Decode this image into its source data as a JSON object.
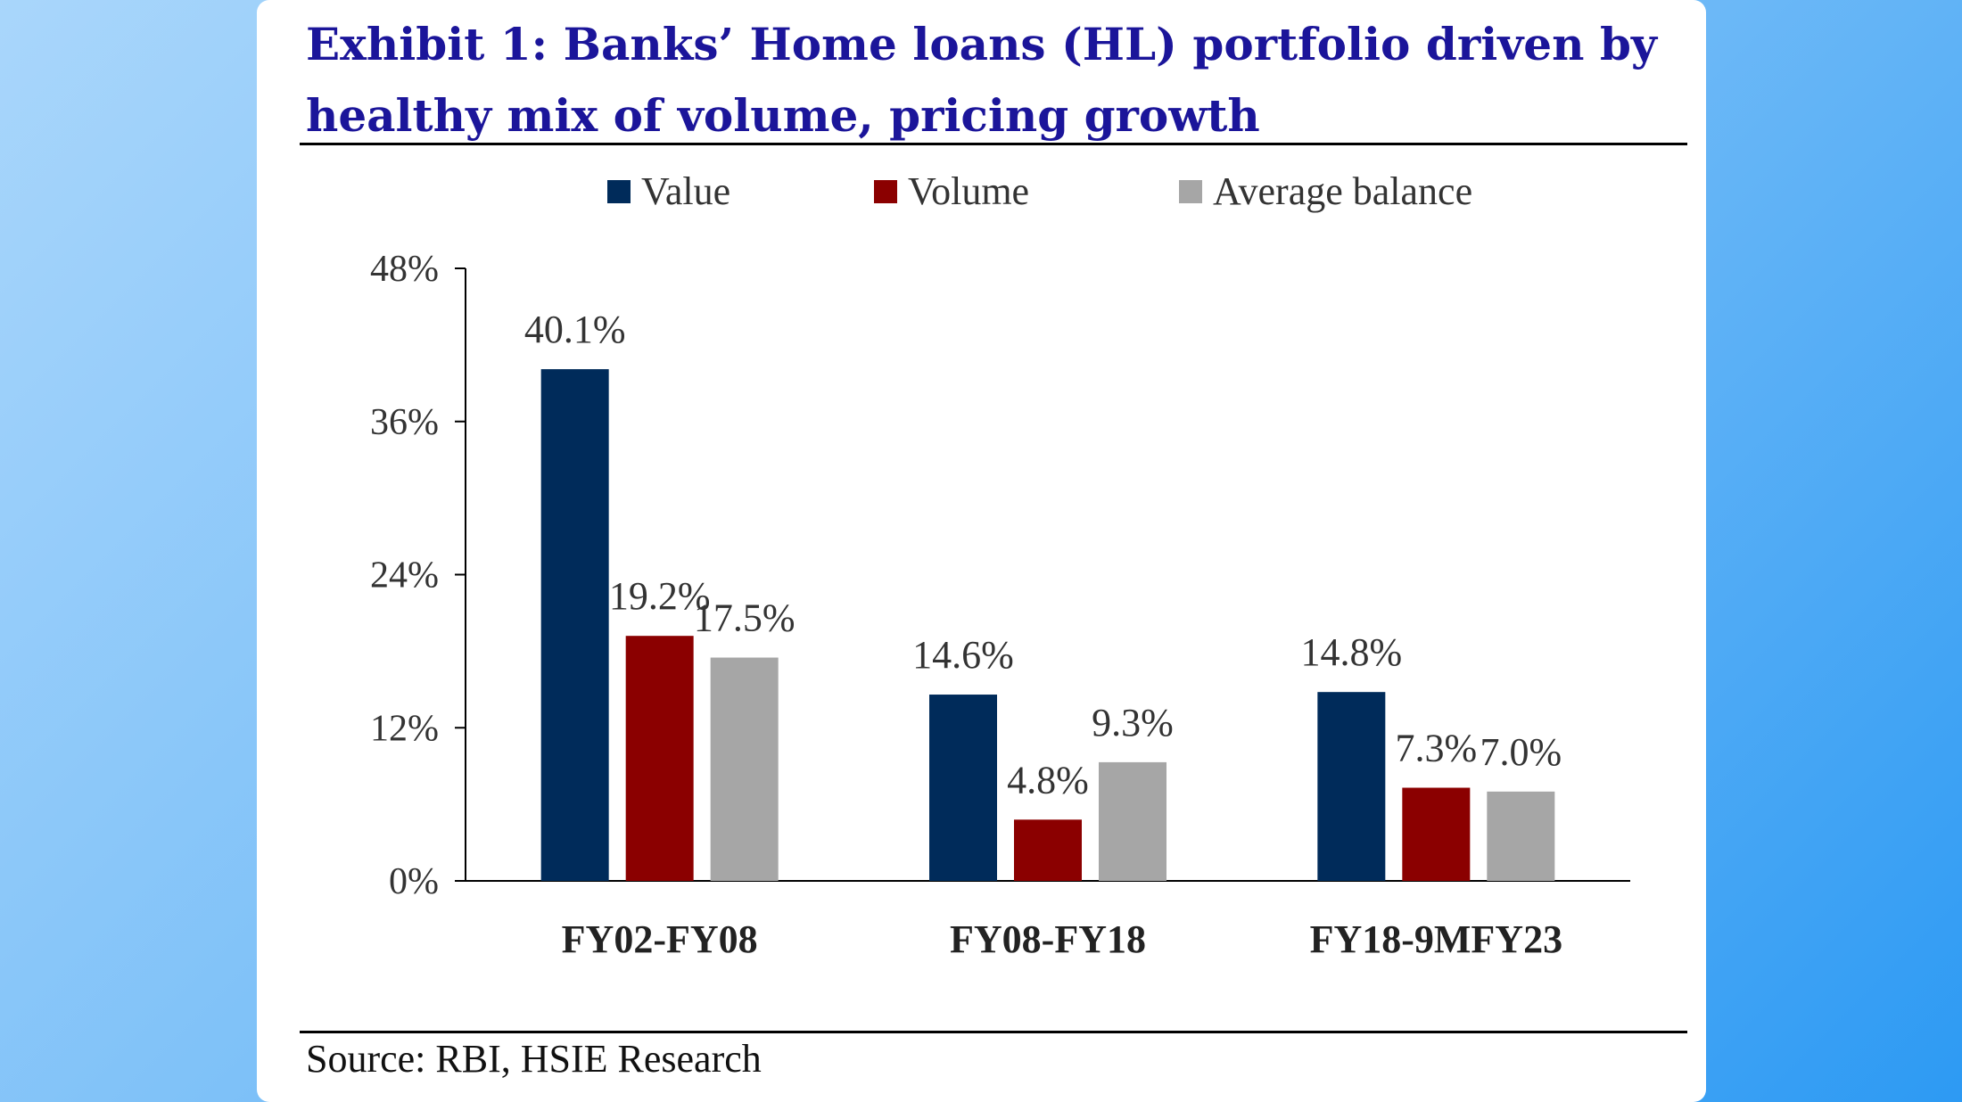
{
  "exhibit": {
    "title": "Exhibit 1: Banks’ Home loans (HL) portfolio driven by healthy mix of volume, pricing growth",
    "source": "Source: RBI, HSIE Research"
  },
  "colors": {
    "title": "#1b159a",
    "value": "#002b5a",
    "volume": "#8b0000",
    "average_balance": "#a6a6a6"
  },
  "chart_data": {
    "type": "bar",
    "title": "Exhibit 1: Banks’ Home loans (HL) portfolio driven by healthy mix of volume, pricing growth",
    "categories": [
      "FY02-FY08",
      "FY08-FY18",
      "FY18-9MFY23"
    ],
    "series": [
      {
        "name": "Value",
        "values": [
          40.1,
          14.6,
          14.8
        ],
        "labels": [
          "40.1%",
          "14.6%",
          "14.8%"
        ],
        "color": "#002b5a"
      },
      {
        "name": "Volume",
        "values": [
          19.2,
          4.8,
          7.3
        ],
        "labels": [
          "19.2%",
          "4.8%",
          "7.3%"
        ],
        "color": "#8b0000"
      },
      {
        "name": "Average balance",
        "values": [
          17.5,
          9.3,
          7.0
        ],
        "labels": [
          "17.5%",
          "9.3%",
          "7.0%"
        ],
        "color": "#a6a6a6"
      }
    ],
    "yticks": [
      0,
      12,
      24,
      36,
      48
    ],
    "ytick_labels": [
      "0%",
      "12%",
      "24%",
      "36%",
      "48%"
    ],
    "ylim": [
      0,
      48
    ],
    "xlabel": "",
    "ylabel": "",
    "grid": false,
    "legend": "top"
  }
}
